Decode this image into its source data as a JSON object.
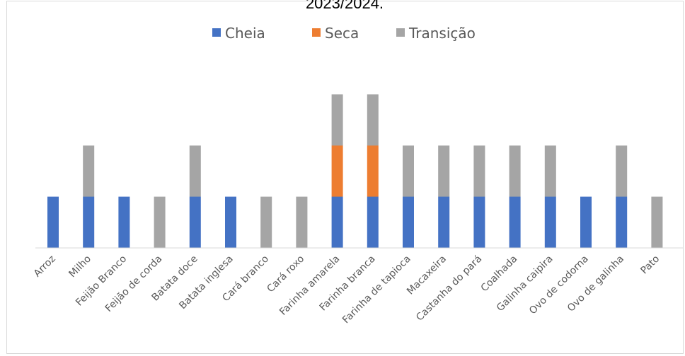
{
  "chart_data": {
    "type": "bar",
    "stacked": true,
    "title": "2023/2024.",
    "xlabel": "",
    "ylabel": "",
    "ylim": [
      0,
      3
    ],
    "grid": false,
    "legend_position": "top",
    "categories": [
      "Arroz",
      "Milho",
      "Feijão Branco",
      "Feijão de corda",
      "Batata doce",
      "Batata inglesa",
      "Cará branco",
      "Cará roxo",
      "Farinha amarela",
      "Farinha branca",
      "Farinha de tapioca",
      "Macaxeira",
      "Castanha do pará",
      "Coalhada",
      "Galinha caipira",
      "Ovo de codorna",
      "Ovo de galinha",
      "Pato"
    ],
    "series": [
      {
        "name": "Cheia",
        "color": "#4472C4",
        "values": [
          1,
          1,
          1,
          0,
          1,
          1,
          0,
          0,
          1,
          1,
          1,
          1,
          1,
          1,
          1,
          1,
          1,
          0
        ]
      },
      {
        "name": "Seca",
        "color": "#ED7D31",
        "values": [
          0,
          0,
          0,
          0,
          0,
          0,
          0,
          0,
          1,
          1,
          0,
          0,
          0,
          0,
          0,
          0,
          0,
          0
        ]
      },
      {
        "name": "Transição",
        "color": "#A5A5A5",
        "values": [
          0,
          1,
          0,
          1,
          1,
          0,
          1,
          1,
          1,
          1,
          1,
          1,
          1,
          1,
          1,
          0,
          1,
          1
        ]
      }
    ]
  }
}
